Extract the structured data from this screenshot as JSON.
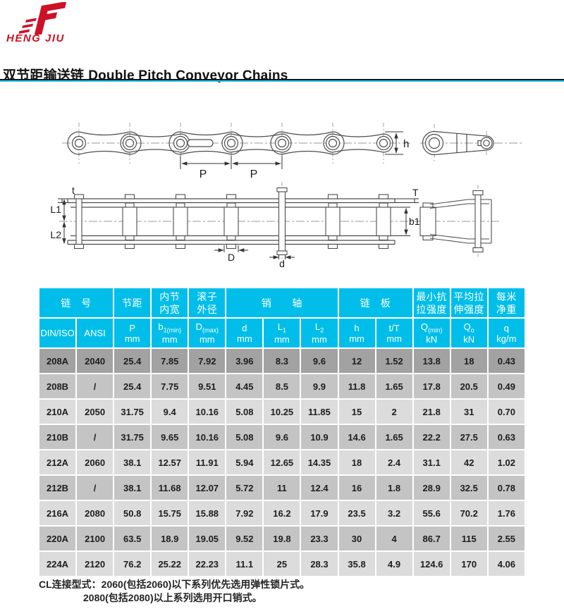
{
  "brand": {
    "name": "HENG JIU"
  },
  "title": {
    "zh": "双节距输送链",
    "en": "Double Pitch Conveyor Chains"
  },
  "diagrams": {
    "labels": {
      "pitch_1": "P",
      "pitch_2": "P",
      "plate_height": "h",
      "plate_thickness_t": "t",
      "plate_thickness_T": "T",
      "pin_length_1": "L1",
      "pin_length_2": "L2",
      "inner_width": "b1",
      "roller_diameter": "D",
      "pin_diameter": "d"
    }
  },
  "table": {
    "group_headers": [
      {
        "label": "链　号",
        "colspan": 2
      },
      {
        "label": "节距",
        "colspan": 1
      },
      {
        "label": "内节\n内宽",
        "colspan": 1
      },
      {
        "label": "滚子\n外径",
        "colspan": 1
      },
      {
        "label": "销　　轴",
        "colspan": 3
      },
      {
        "label": "链　板",
        "colspan": 2
      },
      {
        "label": "最小抗\n拉强度",
        "colspan": 1
      },
      {
        "label": "平均拉\n伸强度",
        "colspan": 1
      },
      {
        "label": "每米\n净重",
        "colspan": 1
      }
    ],
    "sub_headers": [
      {
        "main": "DIN/ISO",
        "sub": "",
        "unit": ""
      },
      {
        "main": "ANSI",
        "sub": "",
        "unit": ""
      },
      {
        "main": "P",
        "sub": "",
        "unit": "mm"
      },
      {
        "main": "b",
        "sub": "1(min)",
        "unit": "mm"
      },
      {
        "main": "D",
        "sub": "(max)",
        "unit": "mm"
      },
      {
        "main": "d",
        "sub": "",
        "unit": "mm"
      },
      {
        "main": "L",
        "sub": "1",
        "unit": "mm"
      },
      {
        "main": "L",
        "sub": "2",
        "unit": "mm"
      },
      {
        "main": "h",
        "sub": "",
        "unit": "mm"
      },
      {
        "main": "t/T",
        "sub": "",
        "unit": "mm"
      },
      {
        "main": "Q",
        "sub": "(min)",
        "unit": "kN"
      },
      {
        "main": "Q",
        "sub": "o",
        "unit": "kN"
      },
      {
        "main": "q",
        "sub": "",
        "unit": "kg/m"
      }
    ],
    "rows": [
      {
        "shade": "dark",
        "cells": [
          "208A",
          "2040",
          "25.4",
          "7.85",
          "7.92",
          "3.96",
          "8.3",
          "9.6",
          "12",
          "1.52",
          "13.8",
          "18",
          "0.43"
        ]
      },
      {
        "shade": "medium",
        "cells": [
          "208B",
          "/",
          "25.4",
          "7.75",
          "9.51",
          "4.45",
          "8.5",
          "9.9",
          "11.8",
          "1.65",
          "17.8",
          "20.5",
          "0.49"
        ]
      },
      {
        "shade": "light",
        "cells": [
          "210A",
          "2050",
          "31.75",
          "9.4",
          "10.16",
          "5.08",
          "10.25",
          "11.85",
          "15",
          "2",
          "21.8",
          "31",
          "0.70"
        ]
      },
      {
        "shade": "medium",
        "cells": [
          "210B",
          "/",
          "31.75",
          "9.65",
          "10.16",
          "5.08",
          "9.6",
          "10.9",
          "14.6",
          "1.65",
          "22.2",
          "27.5",
          "0.63"
        ]
      },
      {
        "shade": "light",
        "cells": [
          "212A",
          "2060",
          "38.1",
          "12.57",
          "11.91",
          "5.94",
          "12.65",
          "14.35",
          "18",
          "2.4",
          "31.1",
          "42",
          "1.02"
        ]
      },
      {
        "shade": "medium",
        "cells": [
          "212B",
          "/",
          "38.1",
          "11.68",
          "12.07",
          "5.72",
          "11",
          "12.4",
          "16",
          "1.8",
          "28.9",
          "32.5",
          "0.78"
        ]
      },
      {
        "shade": "light",
        "cells": [
          "216A",
          "2080",
          "50.8",
          "15.75",
          "15.88",
          "7.92",
          "16.2",
          "17.9",
          "23.5",
          "3.2",
          "55.6",
          "70.2",
          "1.76"
        ]
      },
      {
        "shade": "medium",
        "cells": [
          "220A",
          "2100",
          "63.5",
          "18.9",
          "19.05",
          "9.52",
          "19.8",
          "23.3",
          "30",
          "4",
          "86.7",
          "115",
          "2.55"
        ]
      },
      {
        "shade": "light",
        "cells": [
          "224A",
          "2120",
          "76.2",
          "25.22",
          "22.23",
          "11.1",
          "25",
          "28.3",
          "35.8",
          "4.9",
          "124.6",
          "170",
          "4.06"
        ]
      }
    ]
  },
  "notes": {
    "label": "CL连接型式：",
    "line1": "2060(包括2060)以下系列优先选用弹性锁片式。",
    "line2": "2080(包括2080)以上系列选用开口销式。"
  },
  "colors": {
    "accent_cyan": "#00bee9",
    "brand_red": "#ce1126",
    "row_dark": "#a2a2a2",
    "row_medium": "#c4c4c4",
    "row_light": "#dcdcdc"
  }
}
